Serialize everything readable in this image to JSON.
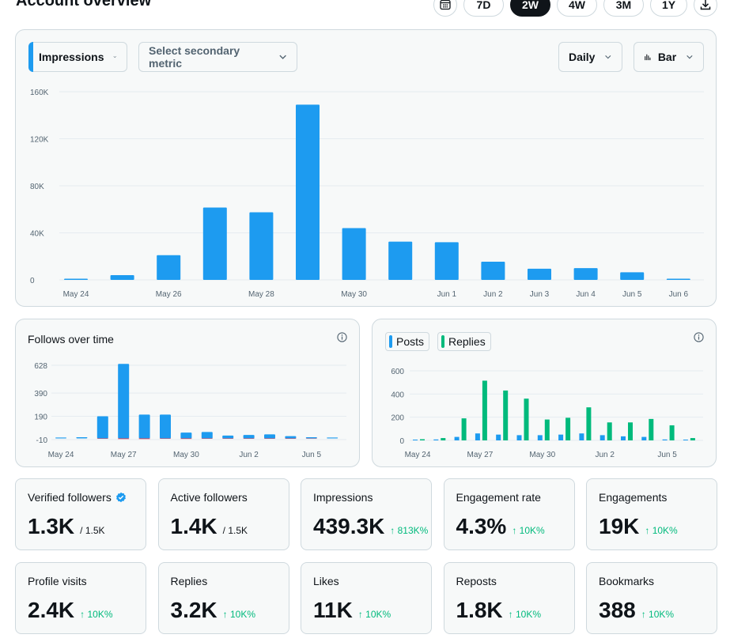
{
  "page": {
    "title": "Account overview"
  },
  "range_buttons": [
    {
      "label": "7D",
      "active": false
    },
    {
      "label": "2W",
      "active": true
    },
    {
      "label": "4W",
      "active": false
    },
    {
      "label": "3M",
      "active": false
    },
    {
      "label": "1Y",
      "active": false
    }
  ],
  "main_chart": {
    "primary_metric": "Impressions",
    "secondary_placeholder": "Select secondary metric",
    "interval": "Daily",
    "chart_type": "Bar"
  },
  "colors": {
    "blue": "#1d9bf0",
    "green": "#00ba7c",
    "red": "#f4212e"
  },
  "follows": {
    "title": "Follows over time"
  },
  "posts_legend": {
    "posts": "Posts",
    "replies": "Replies"
  },
  "cards": [
    {
      "label": "Verified followers",
      "value": "1.3K",
      "sub": "/ 1.5K",
      "delta": "",
      "verified": true
    },
    {
      "label": "Active followers",
      "value": "1.4K",
      "sub": "/ 1.5K",
      "delta": ""
    },
    {
      "label": "Impressions",
      "value": "439.3K",
      "sub": "",
      "delta": "↑ 813K%"
    },
    {
      "label": "Engagement rate",
      "value": "4.3%",
      "sub": "",
      "delta": "↑ 10K%"
    },
    {
      "label": "Engagements",
      "value": "19K",
      "sub": "",
      "delta": "↑ 10K%"
    },
    {
      "label": "Profile visits",
      "value": "2.4K",
      "sub": "",
      "delta": "↑ 10K%"
    },
    {
      "label": "Replies",
      "value": "3.2K",
      "sub": "",
      "delta": "↑ 10K%"
    },
    {
      "label": "Likes",
      "value": "11K",
      "sub": "",
      "delta": "↑ 10K%"
    },
    {
      "label": "Reposts",
      "value": "1.8K",
      "sub": "",
      "delta": "↑ 10K%"
    },
    {
      "label": "Bookmarks",
      "value": "388",
      "sub": "",
      "delta": "↑ 10K%"
    }
  ],
  "chart_data": [
    {
      "type": "bar",
      "categories": [
        "May 24",
        "May 25",
        "May 26",
        "May 27",
        "May 28",
        "May 29",
        "May 30",
        "May 31",
        "Jun 1",
        "Jun 2",
        "Jun 3",
        "Jun 4",
        "Jun 5",
        "Jun 6"
      ],
      "x_tick_labels": [
        "May 24",
        "May 26",
        "May 28",
        "May 30",
        "Jun 1",
        "Jun 2",
        "Jun 3",
        "Jun 4",
        "Jun 5",
        "Jun 6"
      ],
      "y_tick_labels": [
        "160K",
        "120K",
        "80K",
        "40K",
        "0"
      ],
      "series": [
        {
          "name": "Impressions",
          "values": [
            800,
            4000,
            21000,
            61500,
            57500,
            149000,
            44000,
            32500,
            32000,
            15500,
            9500,
            10000,
            6500,
            800
          ]
        }
      ],
      "ylim": [
        0,
        160000
      ]
    },
    {
      "type": "bar",
      "categories": [
        "May 24",
        "May 25",
        "May 26",
        "May 27",
        "May 28",
        "May 29",
        "May 30",
        "May 31",
        "Jun 1",
        "Jun 2",
        "Jun 3",
        "Jun 4",
        "Jun 5",
        "Jun 6"
      ],
      "x_tick_labels": [
        "May 24",
        "May 27",
        "May 30",
        "Jun 2",
        "Jun 5"
      ],
      "y_tick_labels": [
        "628",
        "390",
        "190",
        "-10"
      ],
      "series": [
        {
          "values": [
            5,
            10,
            190,
            640,
            205,
            205,
            50,
            55,
            25,
            30,
            35,
            20,
            10,
            0
          ]
        },
        {
          "values": [
            0,
            0,
            -3,
            -5,
            -5,
            -3,
            -4,
            -3,
            -3,
            -3,
            -3,
            -3,
            -2,
            0
          ]
        }
      ],
      "ylim": [
        -10,
        628
      ]
    },
    {
      "type": "bar",
      "categories": [
        "May 24",
        "May 25",
        "May 26",
        "May 27",
        "May 28",
        "May 29",
        "May 30",
        "May 31",
        "Jun 1",
        "Jun 2",
        "Jun 3",
        "Jun 4",
        "Jun 5",
        "Jun 6"
      ],
      "x_tick_labels": [
        "May 24",
        "May 27",
        "May 30",
        "Jun 2",
        "Jun 5"
      ],
      "y_tick_labels": [
        "600",
        "400",
        "200",
        "0"
      ],
      "series": [
        {
          "name": "Posts",
          "values": [
            4,
            8,
            30,
            60,
            50,
            45,
            45,
            50,
            60,
            45,
            35,
            30,
            8,
            0
          ]
        },
        {
          "name": "Replies",
          "values": [
            10,
            20,
            190,
            515,
            430,
            360,
            180,
            195,
            285,
            155,
            155,
            185,
            130,
            20
          ]
        }
      ],
      "ylim": [
        0,
        600
      ]
    }
  ]
}
